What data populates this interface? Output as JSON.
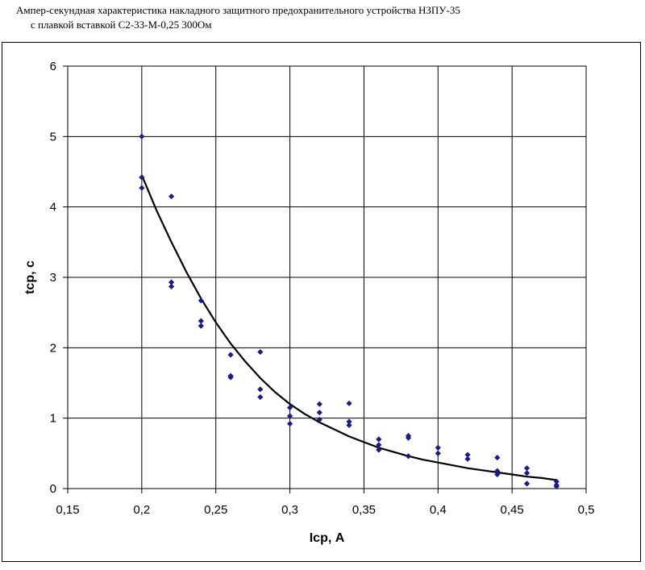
{
  "chart_data": {
    "type": "scatter",
    "title_line1": "Ампер-секундная характеристика накладного защитного предохранительного устройства НЗПУ-35",
    "title_line2": "с плавкой вставкой С2-33-М-0,25 300Ом",
    "xlabel": "Iср, А",
    "ylabel": "tср, с",
    "xlim": [
      0.15,
      0.5
    ],
    "ylim": [
      0,
      6
    ],
    "x_ticks": [
      "0,15",
      "0,2",
      "0,25",
      "0,3",
      "0,35",
      "0,4",
      "0,45",
      "0,5"
    ],
    "y_ticks": [
      "0",
      "1",
      "2",
      "3",
      "4",
      "5",
      "6"
    ],
    "grid": true,
    "series": [
      {
        "kind": "points",
        "color": "#1a1a8c",
        "points": [
          [
            0.2,
            5.0
          ],
          [
            0.2,
            4.42
          ],
          [
            0.2,
            4.27
          ],
          [
            0.22,
            4.15
          ],
          [
            0.22,
            2.93
          ],
          [
            0.22,
            2.87
          ],
          [
            0.24,
            2.67
          ],
          [
            0.24,
            2.38
          ],
          [
            0.24,
            2.31
          ],
          [
            0.26,
            1.9
          ],
          [
            0.26,
            1.6
          ],
          [
            0.26,
            1.58
          ],
          [
            0.28,
            1.94
          ],
          [
            0.28,
            1.41
          ],
          [
            0.28,
            1.3
          ],
          [
            0.3,
            1.15
          ],
          [
            0.3,
            1.03
          ],
          [
            0.3,
            0.92
          ],
          [
            0.32,
            1.2
          ],
          [
            0.32,
            1.08
          ],
          [
            0.32,
            0.98
          ],
          [
            0.34,
            1.21
          ],
          [
            0.34,
            0.95
          ],
          [
            0.34,
            0.9
          ],
          [
            0.36,
            0.7
          ],
          [
            0.36,
            0.62
          ],
          [
            0.36,
            0.55
          ],
          [
            0.38,
            0.75
          ],
          [
            0.38,
            0.72
          ],
          [
            0.38,
            0.46
          ],
          [
            0.4,
            0.58
          ],
          [
            0.4,
            0.5
          ],
          [
            0.42,
            0.48
          ],
          [
            0.42,
            0.42
          ],
          [
            0.44,
            0.44
          ],
          [
            0.44,
            0.25
          ],
          [
            0.44,
            0.2
          ],
          [
            0.46,
            0.29
          ],
          [
            0.46,
            0.22
          ],
          [
            0.46,
            0.07
          ],
          [
            0.48,
            0.1
          ],
          [
            0.48,
            0.05
          ],
          [
            0.48,
            0.03
          ]
        ]
      },
      {
        "kind": "trendline",
        "color": "#000000",
        "points": [
          [
            0.2,
            4.45
          ],
          [
            0.21,
            3.95
          ],
          [
            0.22,
            3.5
          ],
          [
            0.23,
            3.08
          ],
          [
            0.24,
            2.7
          ],
          [
            0.25,
            2.36
          ],
          [
            0.26,
            2.06
          ],
          [
            0.27,
            1.8
          ],
          [
            0.28,
            1.57
          ],
          [
            0.29,
            1.37
          ],
          [
            0.3,
            1.2
          ],
          [
            0.31,
            1.06
          ],
          [
            0.32,
            0.94
          ],
          [
            0.33,
            0.84
          ],
          [
            0.34,
            0.74
          ],
          [
            0.35,
            0.66
          ],
          [
            0.36,
            0.58
          ],
          [
            0.37,
            0.52
          ],
          [
            0.38,
            0.46
          ],
          [
            0.39,
            0.41
          ],
          [
            0.4,
            0.37
          ],
          [
            0.41,
            0.33
          ],
          [
            0.42,
            0.29
          ],
          [
            0.43,
            0.26
          ],
          [
            0.44,
            0.23
          ],
          [
            0.45,
            0.2
          ],
          [
            0.46,
            0.17
          ],
          [
            0.47,
            0.15
          ],
          [
            0.48,
            0.12
          ]
        ]
      }
    ]
  }
}
